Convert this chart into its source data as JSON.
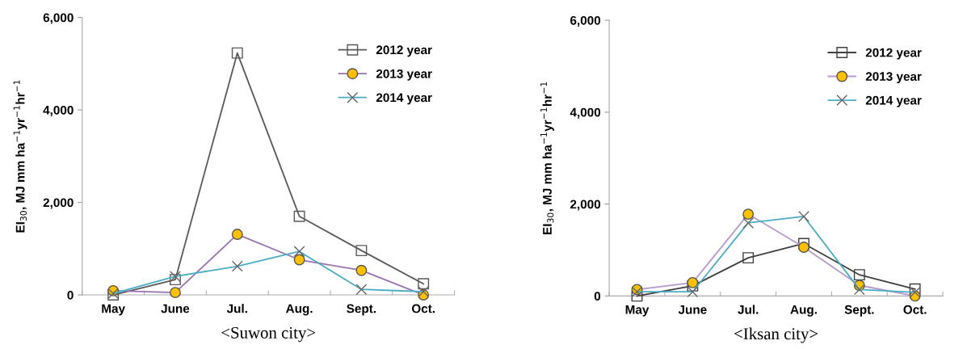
{
  "chart_data": [
    {
      "type": "line",
      "xlabel": "<Suwon city>",
      "ylabel": "EI$_{30}$, MJ mm ha$^{−1}$yr$^{−1}$hr$^{−1}$",
      "categories": [
        "May",
        "June",
        "Jul.",
        "Aug.",
        "Sept.",
        "Oct."
      ],
      "ylim": [
        0,
        6000
      ],
      "yticks": [
        {
          "value": 0,
          "label": "0"
        },
        {
          "value": 2000,
          "label": "2,000"
        },
        {
          "value": 4000,
          "label": "4,000"
        },
        {
          "value": 6000,
          "label": "6,000"
        }
      ],
      "grid": false,
      "legend": "top right",
      "series": [
        {
          "name": "2012 year",
          "color": "#595959",
          "marker": "square",
          "values": [
            0,
            330,
            5230,
            1700,
            960,
            240
          ]
        },
        {
          "name": "2013 year",
          "color": "#9b72b0",
          "marker": "circle",
          "values": [
            90,
            50,
            1310,
            760,
            530,
            0
          ]
        },
        {
          "name": "2014 year",
          "color": "#4bacc6",
          "marker": "cross",
          "values": [
            30,
            400,
            620,
            940,
            120,
            70
          ]
        }
      ]
    },
    {
      "type": "line",
      "xlabel": "<Iksan city>",
      "ylabel": "EI$_{30}$, MJ mm ha$^{−1}$yr$^{−1}$hr$^{−1}$",
      "categories": [
        "May",
        "June",
        "Jul.",
        "Aug.",
        "Sept.",
        "Oct."
      ],
      "ylim": [
        0,
        6000
      ],
      "yticks": [
        {
          "value": 0,
          "label": "0"
        },
        {
          "value": 2000,
          "label": "2,000"
        },
        {
          "value": 4000,
          "label": "4,000"
        },
        {
          "value": 6000,
          "label": "6,000"
        }
      ],
      "grid": false,
      "legend": "top right",
      "series": [
        {
          "name": "2012 year",
          "color": "#404040",
          "marker": "square",
          "values": [
            0,
            220,
            830,
            1140,
            460,
            150
          ]
        },
        {
          "name": "2013 year",
          "color": "#b79bd0",
          "marker": "circle",
          "values": [
            140,
            290,
            1780,
            1060,
            230,
            0
          ]
        },
        {
          "name": "2014 year",
          "color": "#4bacc6",
          "marker": "cross",
          "values": [
            90,
            90,
            1590,
            1730,
            140,
            80
          ]
        }
      ]
    }
  ]
}
